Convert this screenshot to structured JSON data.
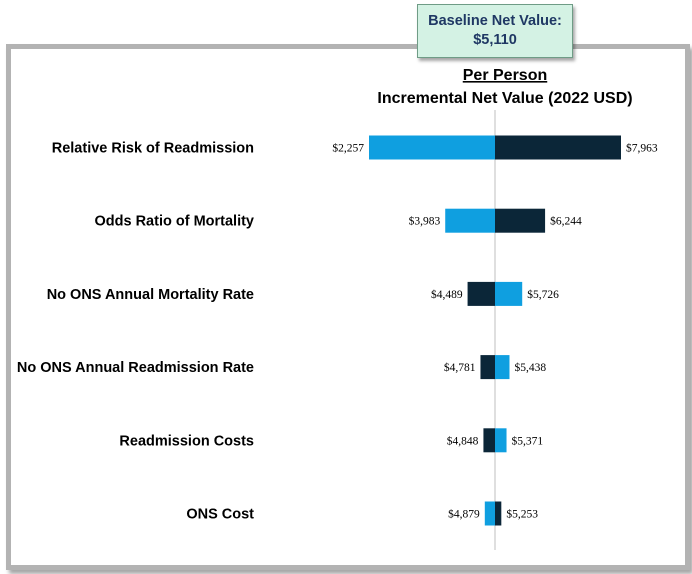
{
  "baseline": {
    "label": "Baseline Net Value:",
    "value": "$5,110",
    "number": 5110
  },
  "colors": {
    "light": "#0f9fe0",
    "dark": "#0b2638",
    "axis": "#bfbfbf"
  },
  "chart_data": {
    "type": "bar",
    "subtype": "tornado",
    "title_line1": "Per Person",
    "title_line2": "Incremental Net Value (2022 USD)",
    "baseline": 5110,
    "categories": [
      "Relative Risk of Readmission",
      "Odds Ratio of Mortality",
      "No ONS Annual Mortality Rate",
      "No ONS Annual Readmission Rate",
      "Readmission Costs",
      "ONS Cost"
    ],
    "series": [
      {
        "name": "Light",
        "color": "light",
        "values": [
          2257,
          3983,
          5726,
          5438,
          5371,
          4879
        ]
      },
      {
        "name": "Dark",
        "color": "dark",
        "values": [
          7963,
          6244,
          4489,
          4781,
          4848,
          5253
        ]
      }
    ],
    "value_labels": {
      "light": [
        "$2,257",
        "$3,983",
        "$5,726",
        "$5,438",
        "$5,371",
        "$4,879"
      ],
      "dark": [
        "$7,963",
        "$6,244",
        "$4,489",
        "$4,781",
        "$4,848",
        "$5,253"
      ]
    }
  }
}
